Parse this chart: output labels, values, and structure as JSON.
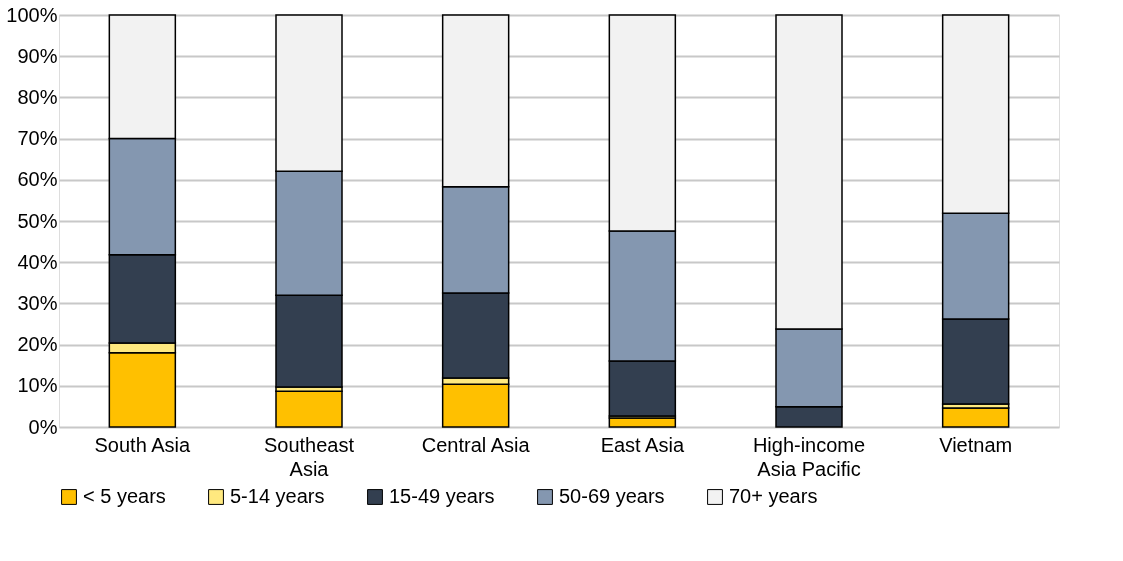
{
  "chart_data": {
    "type": "bar",
    "stacked": true,
    "categories": [
      "South Asia",
      "Southeast Asia",
      "Central Asia",
      "East Asia",
      "High-income Asia Pacific",
      "Vietnam"
    ],
    "series": [
      {
        "name": "< 5 years",
        "color": "#ffc000",
        "values": [
          18.0,
          8.7,
          10.4,
          2.2,
          null,
          4.6
        ]
      },
      {
        "name": "5-14 years",
        "color": "#ffe97f",
        "values": [
          2.4,
          1.0,
          1.5,
          0.5,
          null,
          1.0
        ]
      },
      {
        "name": "15-49 years",
        "color": "#333f50",
        "values": [
          21.4,
          22.3,
          20.6,
          13.3,
          4.9,
          20.6
        ]
      },
      {
        "name": "50-69 years",
        "color": "#8497b0",
        "values": [
          28.2,
          30.1,
          25.8,
          31.6,
          18.9,
          25.7
        ]
      },
      {
        "name": "70+ years",
        "color": "#f2f2f2",
        "values": [
          30.0,
          37.9,
          41.7,
          52.4,
          76.2,
          48.1
        ]
      }
    ],
    "ylim": [
      0,
      100
    ],
    "yticks": [
      {
        "value": 0,
        "label": "0%"
      },
      {
        "value": 10,
        "label": "10%"
      },
      {
        "value": 20,
        "label": "20%"
      },
      {
        "value": 30,
        "label": "30%"
      },
      {
        "value": 40,
        "label": "40%"
      },
      {
        "value": 50,
        "label": "50%"
      },
      {
        "value": 60,
        "label": "60%"
      },
      {
        "value": 70,
        "label": "70%"
      },
      {
        "value": 80,
        "label": "80%"
      },
      {
        "value": 90,
        "label": "90%"
      },
      {
        "value": 100,
        "label": "100%"
      }
    ],
    "grid": "y",
    "legend": "bottom"
  }
}
